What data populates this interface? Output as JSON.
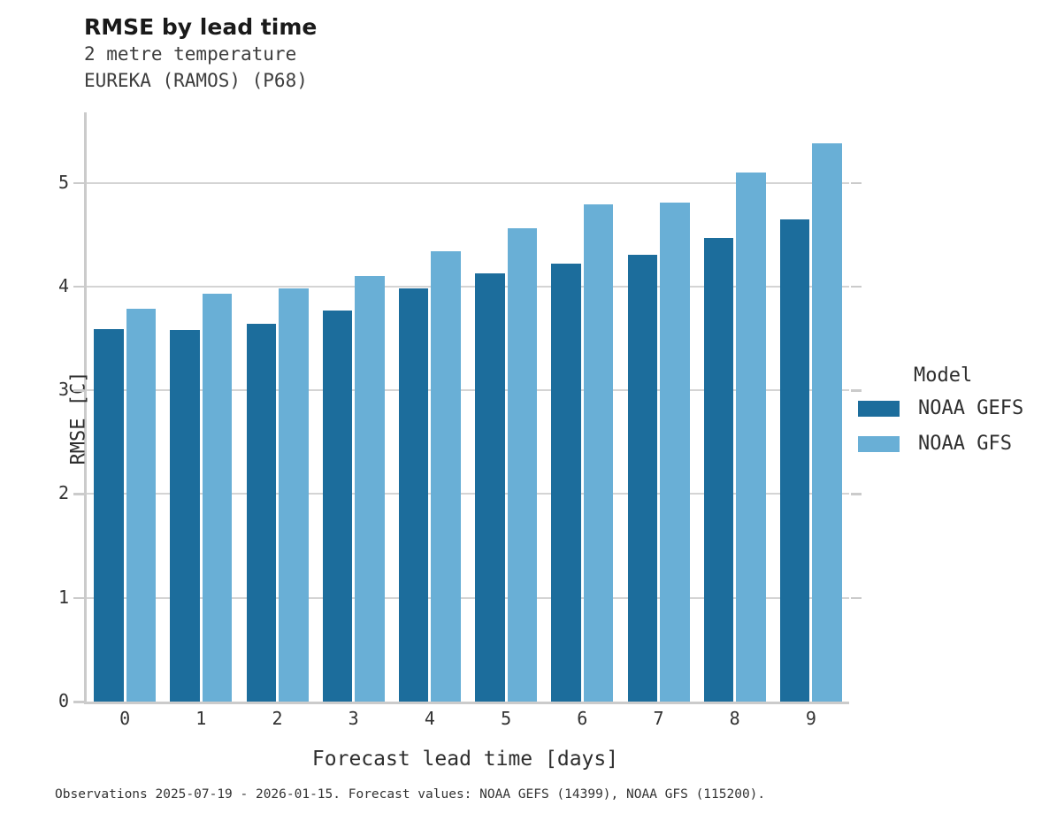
{
  "header": {
    "title": "RMSE by lead time",
    "subtitle_line1": "2 metre temperature",
    "subtitle_line2": "EUREKA (RAMOS) (P68)"
  },
  "legend": {
    "title": "Model",
    "entries": [
      {
        "label": "NOAA GEFS",
        "color": "#1c6d9c"
      },
      {
        "label": "NOAA GFS",
        "color": "#69afd6"
      }
    ]
  },
  "caption": "Observations 2025-07-19 - 2026-01-15. Forecast values: NOAA GEFS (14399), NOAA GFS (115200).",
  "chart_data": {
    "type": "bar",
    "title": "RMSE by lead time",
    "subtitle": [
      "2 metre temperature",
      "EUREKA (RAMOS) (P68)"
    ],
    "categories": [
      "0",
      "1",
      "2",
      "3",
      "4",
      "5",
      "6",
      "7",
      "8",
      "9"
    ],
    "series": [
      {
        "name": "NOAA GEFS",
        "color": "#1c6d9c",
        "values": [
          3.59,
          3.58,
          3.64,
          3.77,
          3.98,
          4.13,
          4.22,
          4.31,
          4.47,
          4.65
        ]
      },
      {
        "name": "NOAA GFS",
        "color": "#69afd6",
        "values": [
          3.79,
          3.93,
          3.98,
          4.1,
          4.34,
          4.56,
          4.79,
          4.81,
          5.1,
          5.38
        ]
      }
    ],
    "xlabel": "Forecast lead time [days]",
    "ylabel": "RMSE [C]",
    "ylim": [
      0,
      5.68
    ],
    "yticks": [
      0,
      1,
      2,
      3,
      4,
      5
    ],
    "grid": true,
    "legend_title": "Model",
    "legend_position": "right"
  },
  "colors": {
    "grid": "#d4d4d4",
    "axis": "#cbcbcb",
    "title_text": "#1a1a1a",
    "body_text": "#2e2e2e"
  }
}
